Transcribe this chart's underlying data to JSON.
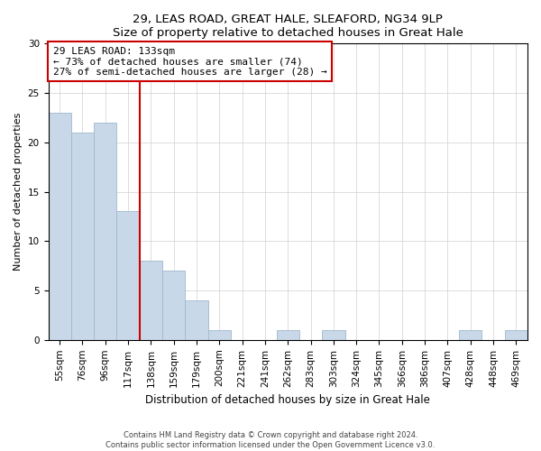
{
  "title1": "29, LEAS ROAD, GREAT HALE, SLEAFORD, NG34 9LP",
  "title2": "Size of property relative to detached houses in Great Hale",
  "xlabel": "Distribution of detached houses by size in Great Hale",
  "ylabel": "Number of detached properties",
  "bar_labels": [
    "55sqm",
    "76sqm",
    "96sqm",
    "117sqm",
    "138sqm",
    "159sqm",
    "179sqm",
    "200sqm",
    "221sqm",
    "241sqm",
    "262sqm",
    "283sqm",
    "303sqm",
    "324sqm",
    "345sqm",
    "366sqm",
    "386sqm",
    "407sqm",
    "428sqm",
    "448sqm",
    "469sqm"
  ],
  "bar_heights": [
    23,
    21,
    22,
    13,
    8,
    7,
    4,
    1,
    0,
    0,
    1,
    0,
    1,
    0,
    0,
    0,
    0,
    0,
    1,
    0,
    1
  ],
  "bar_color": "#c8d8e8",
  "bar_edge_color": "#a0b8cc",
  "vline_color": "#cc0000",
  "vline_x_index": 4,
  "annotation_text": "29 LEAS ROAD: 133sqm\n← 73% of detached houses are smaller (74)\n27% of semi-detached houses are larger (28) →",
  "annotation_box_color": "white",
  "annotation_box_edge": "#cc0000",
  "ylim": [
    0,
    30
  ],
  "yticks": [
    0,
    5,
    10,
    15,
    20,
    25,
    30
  ],
  "footer1": "Contains HM Land Registry data © Crown copyright and database right 2024.",
  "footer2": "Contains public sector information licensed under the Open Government Licence v3.0.",
  "fig_width": 6.0,
  "fig_height": 5.0,
  "dpi": 100
}
